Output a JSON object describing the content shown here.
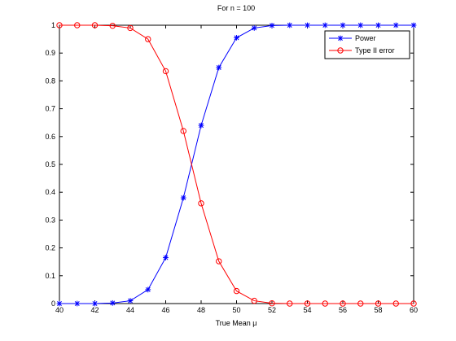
{
  "chart_data": {
    "type": "line",
    "title": "For n = 100",
    "xlabel": "True Mean  μ",
    "ylabel": "",
    "xlim": [
      40,
      60
    ],
    "ylim": [
      0,
      1
    ],
    "xticks": [
      40,
      42,
      44,
      46,
      48,
      50,
      52,
      54,
      56,
      58,
      60
    ],
    "yticks": [
      0,
      0.1,
      0.2,
      0.3,
      0.4,
      0.5,
      0.6,
      0.7,
      0.8,
      0.9,
      1
    ],
    "grid": false,
    "legend_position": "top-right",
    "x": [
      40,
      41,
      42,
      43,
      44,
      45,
      46,
      47,
      48,
      49,
      50,
      51,
      52,
      53,
      54,
      55,
      56,
      57,
      58,
      59,
      60
    ],
    "series": [
      {
        "name": "Power",
        "color": "#0000ff",
        "marker": "asterisk",
        "values": [
          0.0,
          0.0,
          0.0,
          0.002,
          0.01,
          0.05,
          0.165,
          0.38,
          0.64,
          0.848,
          0.955,
          0.99,
          0.999,
          1,
          1,
          1,
          1,
          1,
          1,
          1,
          1
        ]
      },
      {
        "name": "Type II error",
        "color": "#ff0000",
        "marker": "circle",
        "values": [
          1,
          1,
          1,
          0.998,
          0.99,
          0.95,
          0.835,
          0.62,
          0.36,
          0.152,
          0.045,
          0.01,
          0.001,
          0,
          0,
          0,
          0,
          0,
          0,
          0,
          0
        ]
      }
    ]
  }
}
